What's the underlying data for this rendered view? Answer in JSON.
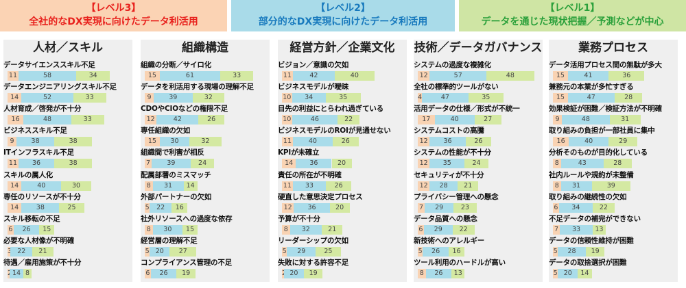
{
  "bands": [
    {
      "id": "band3",
      "title": "【レベル3】",
      "subtitle": "全社的なDX実現に向けたデータ利活用"
    },
    {
      "id": "band2",
      "title": "【レベル2】",
      "subtitle": "部分的なDX実現に向けたデータ利活用"
    },
    {
      "id": "band1",
      "title": "【レベル1】",
      "subtitle": "データを通じた現状把握／予測などが中心"
    }
  ],
  "chart_data": [
    {
      "type": "bar",
      "title": "人材／スキル",
      "series": [
        {
          "values": []
        },
        {
          "values": []
        },
        {
          "values": []
        }
      ],
      "items": [
        {
          "label": "データサイエンススキル不足",
          "values": [
            11,
            58,
            34
          ]
        },
        {
          "label": "データエンジニアリングスキル不足",
          "values": [
            14,
            52,
            33
          ]
        },
        {
          "label": "人材育成／啓発が不十分",
          "values": [
            16,
            48,
            33
          ]
        },
        {
          "label": "ビジネススキル不足",
          "values": [
            9,
            38,
            38
          ]
        },
        {
          "label": "ITインフラスキル不足",
          "values": [
            11,
            36,
            38
          ]
        },
        {
          "label": "スキルの属人化",
          "values": [
            14,
            40,
            30
          ]
        },
        {
          "label": "専任のリソースが不十分",
          "values": [
            14,
            38,
            25
          ]
        },
        {
          "label": "スキル移転の不足",
          "values": [
            6,
            26,
            15
          ]
        },
        {
          "label": "必要な人材像が不明確",
          "values": [
            3,
            22,
            21
          ]
        },
        {
          "label": "待遇／雇用施策が不十分",
          "values": [
            2,
            14,
            8
          ]
        }
      ]
    },
    {
      "type": "bar",
      "title": "組織構造",
      "items": [
        {
          "label": "組織の分断／サイロ化",
          "values": [
            15,
            61,
            33
          ]
        },
        {
          "label": "データを利活用する現場の理解不足",
          "values": [
            9,
            39,
            32
          ]
        },
        {
          "label": "CDOやCIOなどの権限不足",
          "values": [
            12,
            42,
            26
          ]
        },
        {
          "label": "専任組織の欠如",
          "values": [
            15,
            30,
            32
          ]
        },
        {
          "label": "組織間で利害が相反",
          "values": [
            7,
            39,
            24
          ]
        },
        {
          "label": "配属部署のミスマッチ",
          "values": [
            8,
            31,
            14
          ]
        },
        {
          "label": "外部パートナーの欠如",
          "values": [
            5,
            22,
            16
          ]
        },
        {
          "label": "社外リソースへの過度な依存",
          "values": [
            8,
            30,
            15
          ]
        },
        {
          "label": "経営層の理解不足",
          "values": [
            5,
            20,
            27
          ]
        },
        {
          "label": "コンプライアンス管理の不足",
          "values": [
            6,
            26,
            19
          ]
        }
      ]
    },
    {
      "type": "bar",
      "title": "経営方針／企業文化",
      "items": [
        {
          "label": "ビジョン／意識の欠如",
          "values": [
            11,
            42,
            40
          ]
        },
        {
          "label": "ビジネスモデルが曖昧",
          "values": [
            10,
            34,
            35
          ]
        },
        {
          "label": "目先の利益にとらわれ過ぎている",
          "values": [
            10,
            46,
            22
          ]
        },
        {
          "label": "ビジネスモデルのROIが見通せない",
          "values": [
            11,
            40,
            26
          ]
        },
        {
          "label": "KPIが未確立",
          "values": [
            14,
            36,
            20
          ]
        },
        {
          "label": "責任の所在が不明確",
          "values": [
            11,
            33,
            26
          ]
        },
        {
          "label": "硬直した意思決定プロセス",
          "values": [
            12,
            36,
            20
          ]
        },
        {
          "label": "予算が不十分",
          "values": [
            8,
            32,
            21
          ]
        },
        {
          "label": "リーダーシップの欠如",
          "values": [
            5,
            29,
            25
          ]
        },
        {
          "label": "失敗に対する許容不足",
          "values": [
            2,
            20,
            19
          ]
        }
      ]
    },
    {
      "type": "bar",
      "title": "技術／データガバナンス",
      "items": [
        {
          "label": "システムの過度な複雑化",
          "values": [
            12,
            57,
            48
          ]
        },
        {
          "label": "全社の標準的ツールがない",
          "values": [
            4,
            47,
            35
          ]
        },
        {
          "label": "活用データの仕様／形式が不統一",
          "values": [
            17,
            40,
            27
          ]
        },
        {
          "label": "システムコストの高騰",
          "values": [
            12,
            36,
            26
          ]
        },
        {
          "label": "システムの性能が不十分",
          "values": [
            12,
            35,
            24
          ]
        },
        {
          "label": "セキュリティが不十分",
          "values": [
            12,
            28,
            21
          ]
        },
        {
          "label": "プライバシー管理への懸念",
          "values": [
            7,
            29,
            23
          ]
        },
        {
          "label": "データ品質への懸念",
          "values": [
            6,
            29,
            22
          ]
        },
        {
          "label": "新技術へのアレルギー",
          "values": [
            5,
            26,
            16
          ]
        },
        {
          "label": "ツール利用のハードルが高い",
          "values": [
            8,
            26,
            13
          ]
        }
      ]
    },
    {
      "type": "bar",
      "title": "業務プロセス",
      "items": [
        {
          "label": "データ活用プロセス間の無駄が多大",
          "values": [
            15,
            41,
            36
          ]
        },
        {
          "label": "兼務元の本業が多忙すぎる",
          "values": [
            15,
            47,
            28
          ]
        },
        {
          "label": "効果検証が困難／検証方法が不明確",
          "values": [
            9,
            48,
            31
          ]
        },
        {
          "label": "取り組みの負担が一部社員に集中",
          "values": [
            16,
            40,
            29
          ]
        },
        {
          "label": "分析そのものが目的化している",
          "values": [
            8,
            43,
            28
          ]
        },
        {
          "label": "社内ルールや規約が未整備",
          "values": [
            8,
            31,
            39
          ]
        },
        {
          "label": "取り組みの継続性の欠如",
          "values": [
            6,
            34,
            22
          ]
        },
        {
          "label": "不足データの補完ができない",
          "values": [
            7,
            33,
            13
          ]
        },
        {
          "label": "データの信頼性維持が困難",
          "values": [
            5,
            28,
            19
          ]
        },
        {
          "label": "データの取捨選択が困難",
          "values": [
            5,
            20,
            14
          ]
        }
      ]
    }
  ]
}
